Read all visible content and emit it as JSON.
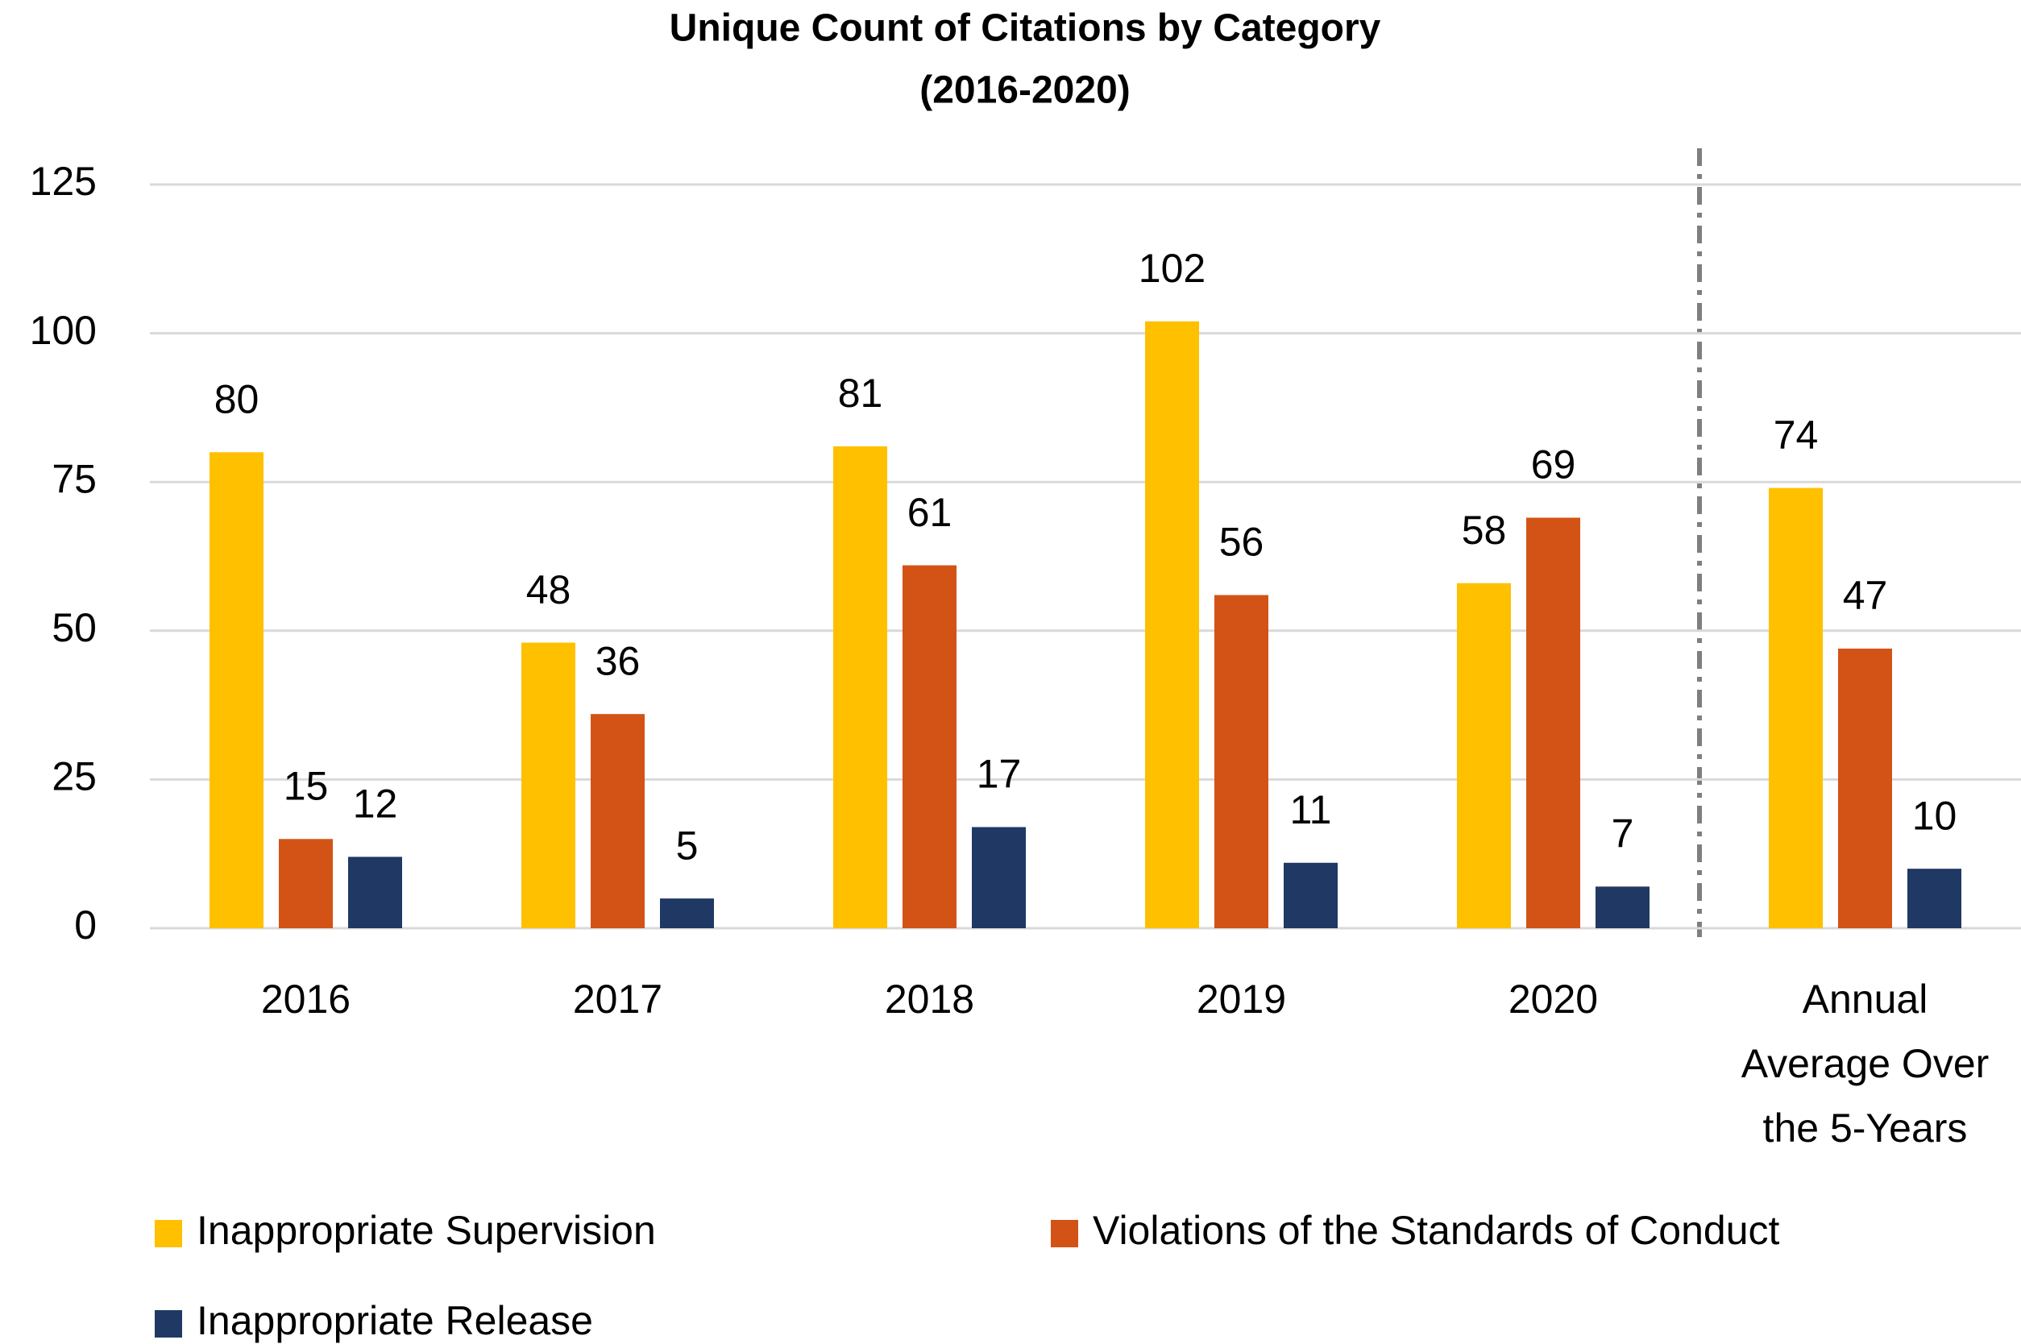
{
  "chart_data": {
    "type": "bar",
    "title": "Unique Count of Citations by Category",
    "subtitle": "(2016-2020)",
    "categories": [
      "2016",
      "2017",
      "2018",
      "2019",
      "2020",
      "Annual\nAverage Over\nthe 5-Years"
    ],
    "series": [
      {
        "name": "Inappropriate Supervision",
        "color": "#ffc000",
        "values": [
          80,
          48,
          81,
          102,
          58,
          74
        ]
      },
      {
        "name": "Violations of the Standards of Conduct",
        "color": "#d35316",
        "values": [
          15,
          36,
          61,
          56,
          69,
          47
        ]
      },
      {
        "name": "Inappropriate Release",
        "color": "#203864",
        "values": [
          12,
          5,
          17,
          11,
          7,
          10
        ]
      }
    ],
    "ylim": [
      0,
      125
    ],
    "yticks": [
      0,
      25,
      50,
      75,
      100,
      125
    ],
    "grid": true
  }
}
